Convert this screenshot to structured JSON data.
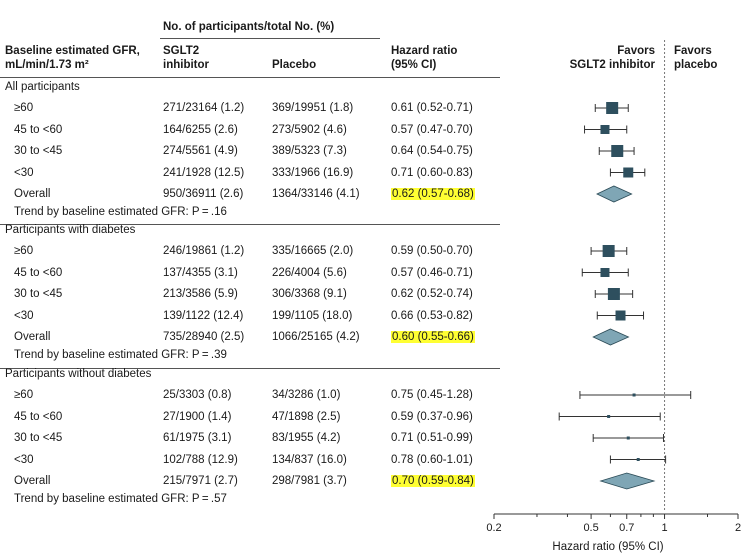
{
  "header": {
    "group_label": "No. of participants/total No. (%)",
    "col_gfr": [
      "Baseline estimated GFR,",
      "mL/min/1.73 m²"
    ],
    "col_sglt2": [
      "SGLT2",
      "inhibitor"
    ],
    "col_placebo": "Placebo",
    "col_hr": [
      "Hazard ratio",
      "(95% CI)"
    ],
    "favors_left": [
      "Favors",
      "SGLT2 inhibitor"
    ],
    "favors_right": [
      "Favors",
      "placebo"
    ]
  },
  "chart_data": {
    "type": "forest",
    "xlabel": "Hazard ratio (95% CI)",
    "x_scale": "log",
    "xlim": [
      0.2,
      2
    ],
    "x_ticks": [
      0.2,
      0.5,
      0.7,
      1,
      2
    ],
    "x_tick_labels": [
      "0.2",
      "0.5",
      "0.7",
      "1",
      "2"
    ],
    "reference_line": 1,
    "groups": [
      {
        "title": "All participants",
        "trend": "Trend by baseline estimated GFR: P = .16",
        "rows": [
          {
            "label": "≥60",
            "sglt2": "271/23164 (1.2)",
            "placebo": "369/19951 (1.8)",
            "hr_text": "0.61 (0.52-0.71)",
            "hr": 0.61,
            "lo": 0.52,
            "hi": 0.71,
            "overall": false
          },
          {
            "label": "45 to <60",
            "sglt2": "164/6255 (2.6)",
            "placebo": "273/5902 (4.6)",
            "hr_text": "0.57 (0.47-0.70)",
            "hr": 0.57,
            "lo": 0.47,
            "hi": 0.7,
            "overall": false
          },
          {
            "label": "30 to <45",
            "sglt2": "274/5561 (4.9)",
            "placebo": "389/5323 (7.3)",
            "hr_text": "0.64 (0.54-0.75)",
            "hr": 0.64,
            "lo": 0.54,
            "hi": 0.75,
            "overall": false
          },
          {
            "label": "<30",
            "sglt2": "241/1928 (12.5)",
            "placebo": "333/1966 (16.9)",
            "hr_text": "0.71 (0.60-0.83)",
            "hr": 0.71,
            "lo": 0.6,
            "hi": 0.83,
            "overall": false
          },
          {
            "label": "Overall",
            "sglt2": "950/36911 (2.6)",
            "placebo": "1364/33146 (4.1)",
            "hr_text": "0.62 (0.57-0.68)",
            "hr": 0.62,
            "lo": 0.57,
            "hi": 0.68,
            "overall": true
          }
        ]
      },
      {
        "title": "Participants with diabetes",
        "trend": "Trend by baseline estimated GFR: P = .39",
        "rows": [
          {
            "label": "≥60",
            "sglt2": "246/19861 (1.2)",
            "placebo": "335/16665 (2.0)",
            "hr_text": "0.59 (0.50-0.70)",
            "hr": 0.59,
            "lo": 0.5,
            "hi": 0.7,
            "overall": false
          },
          {
            "label": "45 to <60",
            "sglt2": "137/4355 (3.1)",
            "placebo": "226/4004 (5.6)",
            "hr_text": "0.57 (0.46-0.71)",
            "hr": 0.57,
            "lo": 0.46,
            "hi": 0.71,
            "overall": false
          },
          {
            "label": "30 to <45",
            "sglt2": "213/3586 (5.9)",
            "placebo": "306/3368 (9.1)",
            "hr_text": "0.62 (0.52-0.74)",
            "hr": 0.62,
            "lo": 0.52,
            "hi": 0.74,
            "overall": false
          },
          {
            "label": "<30",
            "sglt2": "139/1122 (12.4)",
            "placebo": "199/1105 (18.0)",
            "hr_text": "0.66 (0.53-0.82)",
            "hr": 0.66,
            "lo": 0.53,
            "hi": 0.82,
            "overall": false
          },
          {
            "label": "Overall",
            "sglt2": "735/28940 (2.5)",
            "placebo": "1066/25165 (4.2)",
            "hr_text": "0.60 (0.55-0.66)",
            "hr": 0.6,
            "lo": 0.55,
            "hi": 0.66,
            "overall": true
          }
        ]
      },
      {
        "title": "Participants without diabetes",
        "trend": "Trend by baseline estimated GFR: P = .57",
        "rows": [
          {
            "label": "≥60",
            "sglt2": "25/3303 (0.8)",
            "placebo": "34/3286 (1.0)",
            "hr_text": "0.75 (0.45-1.28)",
            "hr": 0.75,
            "lo": 0.45,
            "hi": 1.28,
            "overall": false
          },
          {
            "label": "45 to <60",
            "sglt2": "27/1900 (1.4)",
            "placebo": "47/1898 (2.5)",
            "hr_text": "0.59 (0.37-0.96)",
            "hr": 0.59,
            "lo": 0.37,
            "hi": 0.96,
            "overall": false
          },
          {
            "label": "30 to <45",
            "sglt2": "61/1975 (3.1)",
            "placebo": "83/1955 (4.2)",
            "hr_text": "0.71 (0.51-0.99)",
            "hr": 0.71,
            "lo": 0.51,
            "hi": 0.99,
            "overall": false
          },
          {
            "label": "<30",
            "sglt2": "102/788 (12.9)",
            "placebo": "134/837 (16.0)",
            "hr_text": "0.78 (0.60-1.01)",
            "hr": 0.78,
            "lo": 0.6,
            "hi": 1.01,
            "overall": false
          },
          {
            "label": "Overall",
            "sglt2": "215/7971 (2.7)",
            "placebo": "298/7981 (3.7)",
            "hr_text": "0.70 (0.59-0.84)",
            "hr": 0.7,
            "lo": 0.59,
            "hi": 0.84,
            "overall": true
          }
        ]
      }
    ]
  },
  "colors": {
    "marker": "#2e4f5e",
    "diamond": "#7fa6b5",
    "highlight": "#ffff33",
    "rule": "#555555"
  }
}
